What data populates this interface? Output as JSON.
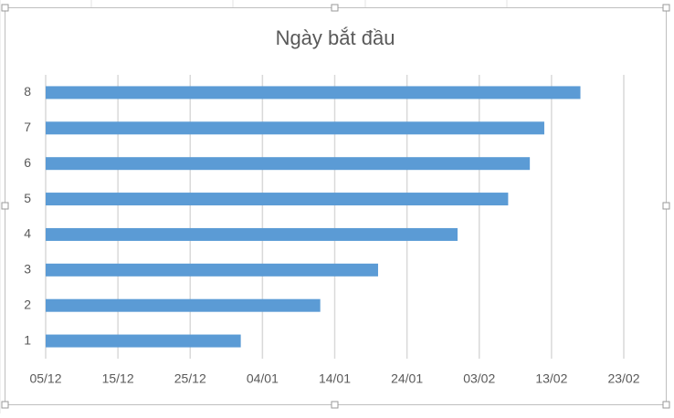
{
  "chart_data": {
    "type": "bar",
    "orientation": "horizontal",
    "title": "Ngày bắt đầu",
    "categories": [
      "1",
      "2",
      "3",
      "4",
      "5",
      "6",
      "7",
      "8"
    ],
    "values": [
      27,
      38,
      46,
      57,
      64,
      67,
      69,
      74
    ],
    "color": "#5b9bd5",
    "xlim": [
      0,
      80
    ],
    "xticks": [
      {
        "value": 0,
        "label": "05/12"
      },
      {
        "value": 10,
        "label": "15/12"
      },
      {
        "value": 20,
        "label": "25/12"
      },
      {
        "value": 30,
        "label": "04/01"
      },
      {
        "value": 40,
        "label": "14/01"
      },
      {
        "value": 50,
        "label": "24/01"
      },
      {
        "value": 60,
        "label": "03/02"
      },
      {
        "value": 70,
        "label": "13/02"
      },
      {
        "value": 80,
        "label": "23/02"
      }
    ],
    "grid": true
  }
}
